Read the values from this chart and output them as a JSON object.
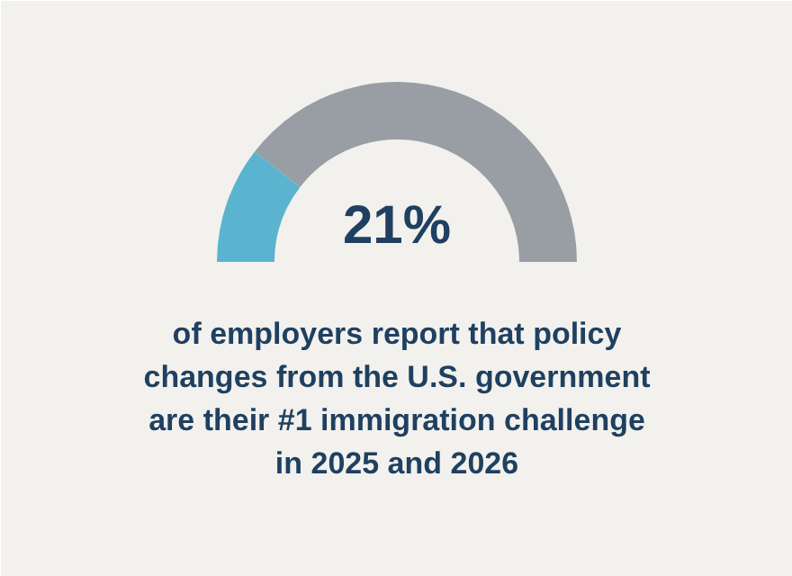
{
  "chart_data": {
    "type": "donut",
    "categories": [
      null,
      null
    ],
    "values": [
      21,
      79
    ],
    "colors": [
      "#5ab4cf",
      "#989ea4"
    ],
    "annotations": [
      "21%",
      "of employers report that policy changes from the U.S. government are their #1 immigration challenge in 2025 and 2026"
    ]
  }
}
